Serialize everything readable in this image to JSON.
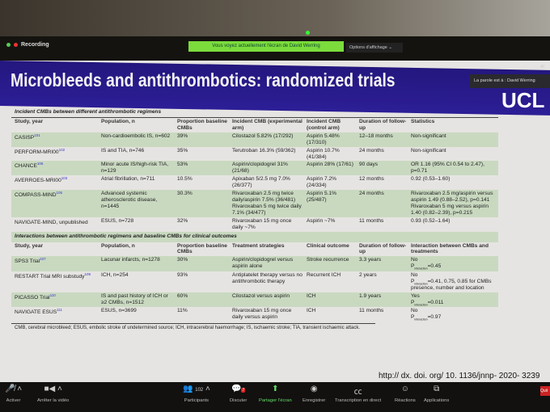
{
  "zoom": {
    "recording": "Recording",
    "share_banner": "Vous voyez actuellement l'écran de David Werring",
    "view_options": "Options d'affichage ⌄",
    "speaker": "La parole est à : David Werring",
    "corner": "Af"
  },
  "slide": {
    "title": "Microbleeds and antithrombotics: randomized trials",
    "logo": "UCL",
    "section1": "Incident CMBs between different antithrombotic regimens",
    "headers1": [
      "Study, year",
      "Population, n",
      "Proportion baseline CMBs",
      "Incident CMB (experimental arm)",
      "Incident CMB (control arm)",
      "Duration of follow-up",
      "Statistics"
    ],
    "rows1": [
      {
        "study": "CASISP",
        "ref": "101",
        "pop": "Non-cardioembolic IS, n=602",
        "prop": "39%",
        "exp": "Cilostazol 5.82% (17/292)",
        "ctrl": "Aspirin 5.48% (17/310)",
        "dur": "12–18 months",
        "stats": "Non-significant"
      },
      {
        "study": "PERFORM-MRI00",
        "ref": "102",
        "pop": "IS and TIA, n=746",
        "prop": "35%",
        "exp": "Terutroban 16.3% (59/362)",
        "ctrl": "Aspirin 10.7% (41/384)",
        "dur": "24 months",
        "stats": "Non-significant"
      },
      {
        "study": "CHANCE",
        "ref": "106",
        "pop": "Minor acute IS/high-risk TIA, n=129",
        "prop": "53%",
        "exp": "Aspirin/clopidogrel 31% (21/68)",
        "ctrl": "Aspirin 28% (17/61)",
        "dur": "90 days",
        "stats": "OR 1.16 (95% CI 0.54 to 2.47), p=0.71"
      },
      {
        "study": "AVERROES-MRI00",
        "ref": "103",
        "pop": "Atrial fibrillation, n=711",
        "prop": "10.5%",
        "exp": "Apixaban 5/2.5 mg 7.0% (26/377)",
        "ctrl": "Aspirin 7.2% (24/334)",
        "dur": "12 months",
        "stats": "0.92 (0.53–1.60)"
      },
      {
        "study": "COMPASS-MIND",
        "ref": "105",
        "pop": "Advanced systemic atherosclerotic disease, n=1445",
        "prop": "30.3%",
        "exp": "Rivaroxaban 2.5 mg twice daily/aspirin 7.5% (36/481) Rivaroxaban 5 mg twice daily 7.1% (34/477)",
        "ctrl": "Aspirin 5.1% (25/487)",
        "dur": "24 months",
        "stats": "Rivaroxaban 2.5 mg/aspirin versus aspirin 1.49 (0.88–2.52), p=0.141 Rivaroxaban 5 mg versus aspirin 1.40 (0.82–2.39), p=0.215"
      },
      {
        "study": "NAVIGATE-MIND, unpublished",
        "ref": "",
        "pop": "ESUS, n=728",
        "prop": "32%",
        "exp": "Rivaroxaban 15 mg once daily ~7%",
        "ctrl": "Aspirin ~7%",
        "dur": "11 months",
        "stats": "0.93 (0.52–1.64)"
      }
    ],
    "section2": "Interactions between antithrombotic regimens and baseline CMBs for clinical outcomes",
    "headers2": [
      "Study, year",
      "Population, n",
      "Proportion baseline CMBs",
      "Treatment strategies",
      "Clinical outcome",
      "Duration of follow-up",
      "Interaction between CMBs and treatments"
    ],
    "rows2": [
      {
        "study": "SPS3 Trial",
        "ref": "107",
        "pop": "Lacunar infarcts, n=1278",
        "prop": "30%",
        "treat": "Aspirin/clopidogrel versus aspirin alone",
        "outcome": "Stroke recurrence",
        "dur": "3.3 years",
        "inter": "No",
        "p": "=0.45"
      },
      {
        "study": "RESTART Trial MRI substudy",
        "ref": "109",
        "pop": "ICH, n=254",
        "prop": "93%",
        "treat": "Antiplatelet therapy versus no antithrombotic therapy",
        "outcome": "Recurrent ICH",
        "dur": "2 years",
        "inter": "No",
        "p": "=0.41, 0.75, 0.85 for CMBs presence, number and location"
      },
      {
        "study": "PICASSO Trial",
        "ref": "110",
        "pop": "IS and past history of ICH or ≥2 CMBs, n=1512",
        "prop": "60%",
        "treat": "Cilostazol versus aspirin",
        "outcome": "ICH",
        "dur": "1.9 years",
        "inter": "Yes",
        "p": "=0.011"
      },
      {
        "study": "NAVIGATE ESUS",
        "ref": "111",
        "pop": "ESUS, n=3699",
        "prop": "11%",
        "treat": "Rivaroxaban 15 mg once daily versus aspirin",
        "outcome": "ICH",
        "dur": "11 months",
        "inter": "No",
        "p": "=0.97"
      }
    ],
    "p_label": "P",
    "p_sub": "interaction",
    "footnote": "CMB, cerebral microbleed; ESUS, embolic stroke of undetermined source; ICH, intracerebral haemorrhage; IS, ischaemic stroke; TIA, transient ischaemic attack.",
    "doi": "http:// dx. doi. org/ 10. 1136/jnnp- 2020- 3239"
  },
  "toolbar": {
    "mute": "Activer",
    "video": "Arrêter la vidéo",
    "participants": "Participants",
    "participants_count": "102",
    "chat": "Discuter",
    "chat_badge": "7",
    "share": "Partager l'écran",
    "record": "Enregistrer",
    "transcript": "Transcription en direct",
    "reactions": "Réactions",
    "apps": "Applications",
    "quit": "Quit"
  }
}
